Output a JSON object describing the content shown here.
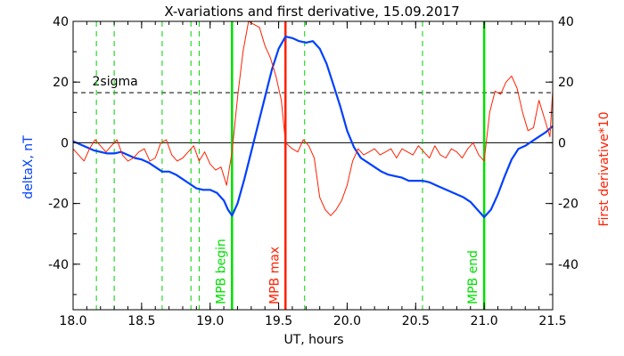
{
  "chart_data": {
    "type": "line",
    "title": "X-variations and first derivative, 15.09.2017",
    "xlabel": "UT, hours",
    "ylabel_left": "deltaX, nT",
    "ylabel_right": "First derivative*10",
    "xlim": [
      18.0,
      21.5
    ],
    "ylim_left": [
      -55,
      40
    ],
    "ylim_right": [
      -55,
      40
    ],
    "x_ticks": [
      "18.0",
      "18.5",
      "19.0",
      "19.5",
      "20.0",
      "20.5",
      "21.0",
      "21.5"
    ],
    "y_ticks_left": [
      "-40",
      "-20",
      "0",
      "20",
      "40"
    ],
    "y_ticks_right": [
      "-40",
      "-20",
      "0",
      "20",
      "40"
    ],
    "threshold": {
      "label": "2sigma",
      "value": 16.5
    },
    "dashed_markers_x": [
      18.17,
      18.3,
      18.65,
      18.86,
      18.92,
      19.69,
      20.55
    ],
    "events": [
      {
        "label": "MPB begin",
        "x": 19.16,
        "color": "#00e000"
      },
      {
        "label": "MPB max",
        "x": 19.55,
        "color": "#ff2000"
      },
      {
        "label": "MPB end",
        "x": 21.0,
        "color": "#00e000"
      }
    ],
    "series": [
      {
        "axis": "left",
        "color": "#0040ff",
        "x": [
          18.0,
          18.05,
          18.1,
          18.15,
          18.2,
          18.25,
          18.3,
          18.35,
          18.4,
          18.45,
          18.5,
          18.55,
          18.6,
          18.65,
          18.7,
          18.75,
          18.8,
          18.85,
          18.9,
          18.95,
          19.0,
          19.05,
          19.1,
          19.13,
          19.16,
          19.2,
          19.25,
          19.3,
          19.35,
          19.4,
          19.45,
          19.5,
          19.55,
          19.6,
          19.65,
          19.7,
          19.75,
          19.8,
          19.85,
          19.9,
          19.95,
          20.0,
          20.05,
          20.1,
          20.15,
          20.2,
          20.25,
          20.3,
          20.35,
          20.4,
          20.45,
          20.5,
          20.55,
          20.6,
          20.65,
          20.7,
          20.75,
          20.8,
          20.85,
          20.9,
          20.95,
          21.0,
          21.05,
          21.1,
          21.15,
          21.2,
          21.25,
          21.3,
          21.35,
          21.4,
          21.45,
          21.5
        ],
        "values": [
          0.5,
          -0.5,
          -1.5,
          -2.5,
          -3.0,
          -3.5,
          -3.5,
          -3.0,
          -4.0,
          -5.0,
          -5.5,
          -6.5,
          -8.0,
          -9.5,
          -9.5,
          -10.5,
          -12.0,
          -13.5,
          -15.0,
          -15.5,
          -15.5,
          -16.5,
          -19.0,
          -22.0,
          -24.0,
          -20.0,
          -12.0,
          -3.0,
          6.0,
          15.0,
          24.0,
          31.0,
          35.0,
          34.5,
          33.5,
          33.0,
          33.5,
          31.0,
          26.0,
          19.0,
          12.0,
          4.0,
          -1.5,
          -5.0,
          -6.5,
          -8.0,
          -9.5,
          -10.5,
          -11.0,
          -11.5,
          -12.5,
          -12.5,
          -12.5,
          -13.0,
          -14.0,
          -15.0,
          -16.0,
          -17.0,
          -18.0,
          -19.5,
          -22.0,
          -24.5,
          -22.0,
          -17.0,
          -11.0,
          -5.5,
          -2.0,
          -1.0,
          0.5,
          2.0,
          3.5,
          5.5
        ]
      },
      {
        "axis": "right",
        "color": "#ff2000",
        "x": [
          18.0,
          18.04,
          18.08,
          18.12,
          18.16,
          18.2,
          18.24,
          18.28,
          18.32,
          18.36,
          18.4,
          18.44,
          18.48,
          18.52,
          18.56,
          18.6,
          18.64,
          18.68,
          18.72,
          18.76,
          18.8,
          18.84,
          18.88,
          18.92,
          18.96,
          19.0,
          19.04,
          19.08,
          19.12,
          19.16,
          19.2,
          19.24,
          19.28,
          19.32,
          19.36,
          19.4,
          19.44,
          19.48,
          19.52,
          19.55,
          19.6,
          19.64,
          19.68,
          19.72,
          19.76,
          19.8,
          19.84,
          19.88,
          19.92,
          19.96,
          20.0,
          20.04,
          20.08,
          20.12,
          20.16,
          20.2,
          20.24,
          20.28,
          20.32,
          20.36,
          20.4,
          20.44,
          20.48,
          20.52,
          20.56,
          20.6,
          20.64,
          20.68,
          20.72,
          20.76,
          20.8,
          20.84,
          20.88,
          20.92,
          20.96,
          21.0,
          21.04,
          21.08,
          21.12,
          21.16,
          21.2,
          21.24,
          21.28,
          21.32,
          21.36,
          21.4,
          21.44,
          21.48,
          21.5
        ],
        "values": [
          -2,
          -4,
          -6,
          -2,
          1,
          -1,
          -3,
          -1,
          1,
          -4,
          -6,
          -5,
          -3,
          -2,
          -6,
          -5,
          0,
          1,
          -4,
          -6,
          -5,
          -3,
          -1,
          -6,
          -3,
          -7,
          -9,
          -8,
          -14,
          -3,
          15,
          30,
          40,
          39,
          38,
          32,
          28,
          22,
          14,
          0,
          -2,
          -3,
          1,
          -1,
          -5,
          -18,
          -22,
          -24,
          -22,
          -19,
          -14,
          -6,
          -2,
          -4,
          -3,
          -2,
          -4,
          -3,
          -2,
          -5,
          -2,
          -3,
          -4,
          -1,
          -3,
          -5,
          -1,
          -4,
          -5,
          -2,
          -3,
          -5,
          -2,
          0,
          -4,
          -6,
          10,
          17,
          16,
          20,
          22,
          18,
          10,
          4,
          5,
          14,
          8,
          2,
          17
        ]
      }
    ]
  }
}
